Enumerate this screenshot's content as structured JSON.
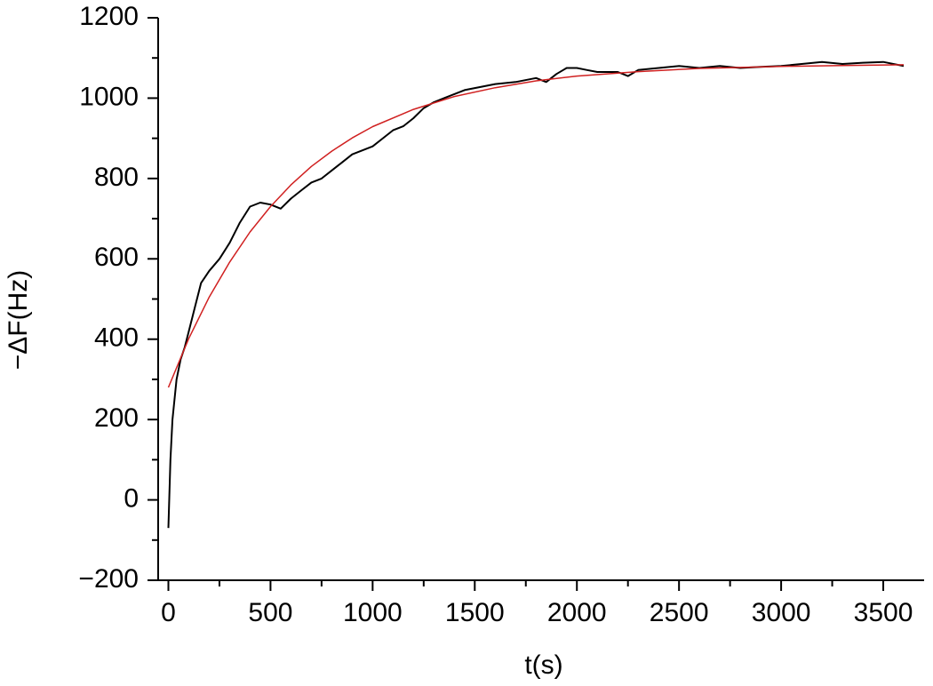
{
  "chart_data": {
    "type": "line",
    "x_label": "t(s)",
    "y_label": "−ΔF(Hz)",
    "xlim": [
      -50,
      3700
    ],
    "ylim": [
      -200,
      1200
    ],
    "xticks": [
      0,
      500,
      1000,
      1500,
      2000,
      2500,
      3000,
      3500
    ],
    "xticks_minor": [
      250,
      750,
      1250,
      1750,
      2250,
      2750,
      3250
    ],
    "yticks": [
      {
        "value": -200,
        "label": "−200"
      },
      0,
      200,
      400,
      600,
      800,
      1000,
      1200
    ],
    "yticks_minor": [
      -100,
      100,
      300,
      500,
      700,
      900,
      1100
    ],
    "series": [
      {
        "color": "#000000",
        "width": 2,
        "x": [
          0,
          10,
          20,
          40,
          60,
          80,
          100,
          130,
          160,
          200,
          250,
          300,
          350,
          400,
          450,
          500,
          550,
          600,
          650,
          700,
          750,
          800,
          850,
          900,
          950,
          1000,
          1050,
          1100,
          1150,
          1200,
          1250,
          1300,
          1350,
          1400,
          1450,
          1500,
          1600,
          1700,
          1800,
          1850,
          1900,
          1950,
          2000,
          2050,
          2100,
          2200,
          2250,
          2300,
          2400,
          2500,
          2600,
          2700,
          2800,
          2900,
          3000,
          3100,
          3200,
          3300,
          3400,
          3500,
          3600
        ],
        "values": [
          -70,
          100,
          200,
          300,
          350,
          380,
          420,
          480,
          540,
          570,
          600,
          640,
          690,
          730,
          740,
          735,
          725,
          750,
          770,
          790,
          800,
          820,
          840,
          860,
          870,
          880,
          900,
          920,
          930,
          950,
          975,
          990,
          1000,
          1010,
          1020,
          1025,
          1035,
          1040,
          1050,
          1040,
          1060,
          1075,
          1075,
          1070,
          1065,
          1065,
          1055,
          1070,
          1075,
          1080,
          1075,
          1080,
          1075,
          1078,
          1080,
          1085,
          1090,
          1085,
          1088,
          1090,
          1080
        ]
      },
      {
        "color": "#d02020",
        "width": 1.5,
        "x": [
          0,
          100,
          200,
          300,
          400,
          500,
          600,
          700,
          800,
          900,
          1000,
          1200,
          1400,
          1600,
          1800,
          2000,
          2300,
          2600,
          3000,
          3300,
          3600
        ],
        "values": [
          280,
          402,
          505,
          592,
          667,
          730,
          784,
          830,
          868,
          901,
          929,
          972,
          1004,
          1026,
          1043,
          1055,
          1066,
          1074,
          1079,
          1081,
          1083
        ]
      }
    ]
  }
}
